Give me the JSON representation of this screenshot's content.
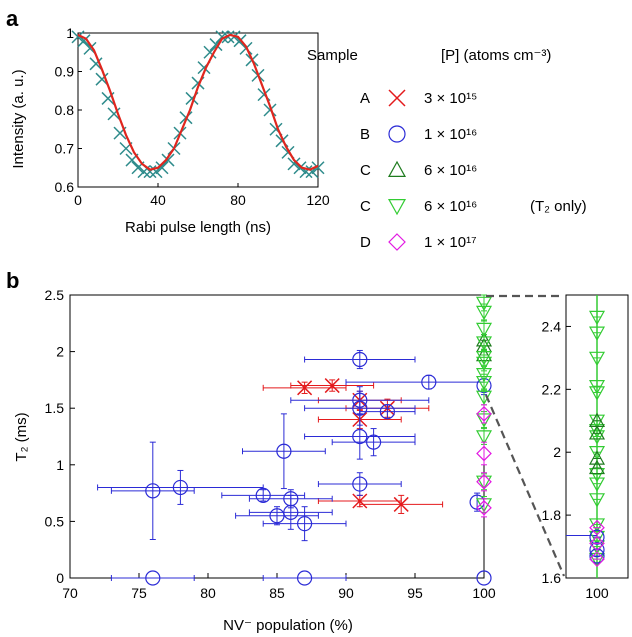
{
  "panel_labels": {
    "a": "a",
    "b": "b"
  },
  "legend": {
    "header_sample": "Sample",
    "header_conc": "[P] (atoms cm⁻³)",
    "rows": [
      {
        "sample": "A",
        "marker": "x-cross",
        "color": "#e41a1c",
        "conc": "3 × 10¹⁵",
        "note": ""
      },
      {
        "sample": "B",
        "marker": "circle",
        "color": "#2b2bd6",
        "conc": "1 × 10¹⁶",
        "note": ""
      },
      {
        "sample": "C",
        "marker": "triangle-up",
        "color": "#1e7b1e",
        "conc": "6 × 10¹⁶",
        "note": ""
      },
      {
        "sample": "C",
        "marker": "triangle-down",
        "color": "#33cc33",
        "conc": "6 × 10¹⁶",
        "note": "(T₂ only)"
      },
      {
        "sample": "D",
        "marker": "diamond",
        "color": "#e21ae2",
        "conc": "1 × 10¹⁷",
        "note": ""
      }
    ]
  },
  "chart_data": [
    {
      "type": "line",
      "panel": "a",
      "xlabel": "Rabi pulse length (ns)",
      "ylabel": "Intensity (a. u.)",
      "xlim": [
        0,
        120
      ],
      "ylim": [
        0.6,
        1.0
      ],
      "xticks": [
        0,
        40,
        80,
        120
      ],
      "yticks": [
        0.6,
        0.7,
        0.8,
        0.9,
        1
      ],
      "ytick_labels": [
        "0.6",
        "0.7",
        "0.8",
        "0.9",
        "1"
      ],
      "series": [
        {
          "kind": "data",
          "marker": "x",
          "color": "#2e8b8b",
          "x": [
            0,
            3,
            6,
            9,
            12,
            15,
            18,
            21,
            24,
            27,
            30,
            33,
            36,
            39,
            42,
            45,
            48,
            51,
            54,
            57,
            60,
            63,
            66,
            69,
            72,
            75,
            78,
            81,
            84,
            87,
            90,
            93,
            96,
            99,
            102,
            105,
            108,
            111,
            114,
            117,
            120
          ],
          "y": [
            0.99,
            0.98,
            0.96,
            0.92,
            0.88,
            0.83,
            0.79,
            0.74,
            0.7,
            0.67,
            0.65,
            0.64,
            0.64,
            0.64,
            0.65,
            0.67,
            0.7,
            0.74,
            0.78,
            0.83,
            0.87,
            0.91,
            0.95,
            0.97,
            0.99,
            0.99,
            0.99,
            0.98,
            0.96,
            0.93,
            0.89,
            0.84,
            0.8,
            0.75,
            0.72,
            0.69,
            0.66,
            0.65,
            0.64,
            0.64,
            0.65
          ]
        },
        {
          "kind": "fit",
          "color": "#e0261e",
          "x": [
            0,
            4,
            8,
            12,
            16,
            20,
            24,
            28,
            32,
            36,
            40,
            44,
            48,
            52,
            56,
            60,
            64,
            68,
            72,
            76,
            80,
            84,
            88,
            92,
            96,
            100,
            104,
            108,
            112,
            116,
            120
          ],
          "y": [
            0.995,
            0.985,
            0.955,
            0.905,
            0.85,
            0.79,
            0.735,
            0.69,
            0.66,
            0.645,
            0.65,
            0.67,
            0.7,
            0.75,
            0.8,
            0.86,
            0.91,
            0.95,
            0.985,
            0.995,
            0.99,
            0.965,
            0.92,
            0.865,
            0.81,
            0.75,
            0.705,
            0.67,
            0.65,
            0.645,
            0.655
          ]
        }
      ]
    },
    {
      "type": "scatter",
      "panel": "b",
      "xlabel": "NV⁻ population (%)",
      "ylabel": "T₂ (ms)",
      "xlim": [
        70,
        100
      ],
      "ylim": [
        0,
        2.5
      ],
      "xticks": [
        70,
        75,
        80,
        85,
        90,
        95,
        100
      ],
      "yticks": [
        0,
        0.5,
        1,
        1.5,
        2,
        2.5
      ],
      "ytick_labels": [
        "0",
        "0.5",
        "1",
        "1.5",
        "2",
        "2.5"
      ],
      "series": [
        {
          "sample": "A",
          "marker": "x-cross",
          "color": "#e41a1c",
          "points": [
            [
              87,
              1.68,
              3,
              0.05
            ],
            [
              89,
              1.7,
              3,
              0.05
            ],
            [
              91,
              1.57,
              3,
              0.08
            ],
            [
              91,
              1.4,
              3,
              0.08
            ],
            [
              93,
              1.5,
              3,
              0.08
            ],
            [
              91,
              0.68,
              3,
              0.05
            ],
            [
              94,
              0.65,
              3,
              0.08
            ]
          ]
        },
        {
          "sample": "B",
          "marker": "circle",
          "color": "#2b2bd6",
          "points": [
            [
              76,
              0.77,
              3,
              0.43
            ],
            [
              78,
              0.8,
              6,
              0.15
            ],
            [
              84,
              0.73,
              3,
              0.05
            ],
            [
              85,
              0.55,
              3,
              0.08
            ],
            [
              85.5,
              1.12,
              3,
              0.33
            ],
            [
              86,
              0.7,
              3,
              0.08
            ],
            [
              86,
              0.58,
              3,
              0.15
            ],
            [
              87,
              0.48,
              3,
              0.15
            ],
            [
              91,
              1.93,
              4,
              0.08
            ],
            [
              91,
              1.57,
              5,
              0.12
            ],
            [
              91,
              1.5,
              4,
              0.15
            ],
            [
              91,
              1.25,
              4,
              0.2
            ],
            [
              91,
              0.83,
              3,
              0.1
            ],
            [
              92,
              1.2,
              3,
              0.12
            ],
            [
              93,
              1.47,
              2,
              0.06
            ],
            [
              96,
              1.73,
              6,
              0.06
            ],
            [
              99.5,
              0.67,
              0,
              0.08
            ],
            [
              100,
              1.7,
              0,
              0.08
            ],
            [
              76,
              0.0,
              3,
              0
            ],
            [
              87,
              0.0,
              3,
              0
            ],
            [
              100,
              0.0,
              0,
              0
            ]
          ]
        },
        {
          "sample": "C",
          "marker": "triangle-up",
          "color": "#1e7b1e",
          "points": [
            [
              100,
              1.97,
              0,
              0.05
            ],
            [
              100,
              2.05,
              0,
              0.05
            ],
            [
              100,
              2.1,
              0,
              0.05
            ]
          ]
        },
        {
          "sample": "C (T₂ only)",
          "marker": "triangle-down",
          "color": "#33cc33",
          "points": [
            [
              100,
              2.43,
              0,
              0.07
            ],
            [
              100,
              2.35,
              0,
              0.07
            ],
            [
              100,
              2.2,
              0,
              0.07
            ],
            [
              100,
              2.08,
              0,
              0.07
            ],
            [
              100,
              1.95,
              0,
              0.07
            ],
            [
              100,
              1.9,
              0,
              0.07
            ],
            [
              100,
              1.8,
              0,
              0.07
            ],
            [
              100,
              1.73,
              0,
              0.07
            ],
            [
              100,
              1.6,
              0,
              0.07
            ],
            [
              100,
              1.4,
              0,
              0.07
            ],
            [
              100,
              1.25,
              0,
              0.07
            ],
            [
              100,
              0.85,
              0,
              0.07
            ],
            [
              100,
              0.65,
              0,
              0.07
            ]
          ]
        },
        {
          "sample": "D",
          "marker": "diamond",
          "color": "#e21ae2",
          "points": [
            [
              100,
              1.45,
              0,
              0.08
            ],
            [
              100,
              1.1,
              0,
              0.1
            ],
            [
              100,
              0.85,
              0,
              0.08
            ],
            [
              100,
              0.62,
              0,
              0.08
            ]
          ]
        }
      ]
    },
    {
      "type": "scatter",
      "panel": "b-inset",
      "xlim": [
        99,
        101
      ],
      "ylim": [
        1.6,
        2.5
      ],
      "xticks": [
        100
      ],
      "yticks": [
        1.6,
        1.8,
        2.0,
        2.2,
        2.4
      ],
      "ytick_labels": [
        "1.6",
        "1.8",
        "2",
        "2.2",
        "2.4"
      ],
      "series": [
        {
          "sample": "C (T₂ only)",
          "marker": "triangle-down",
          "color": "#33cc33",
          "points": [
            [
              100,
              2.43
            ],
            [
              100,
              2.38
            ],
            [
              100,
              2.3
            ],
            [
              100,
              2.21
            ],
            [
              100,
              2.19
            ],
            [
              100,
              2.1
            ],
            [
              100,
              2.07
            ],
            [
              100,
              2.05
            ],
            [
              100,
              2.0
            ],
            [
              100,
              1.93
            ],
            [
              100,
              1.9
            ],
            [
              100,
              1.85
            ],
            [
              100,
              1.77
            ],
            [
              100,
              1.73
            ],
            [
              100,
              1.7
            ],
            [
              100,
              1.66
            ]
          ]
        },
        {
          "sample": "C",
          "marker": "triangle-up",
          "color": "#1e7b1e",
          "points": [
            [
              100,
              2.1
            ],
            [
              100,
              2.06
            ],
            [
              100,
              1.98
            ],
            [
              100,
              1.95
            ]
          ]
        },
        {
          "sample": "B",
          "marker": "circle",
          "color": "#2b2bd6",
          "points": [
            [
              100,
              1.73
            ],
            [
              100,
              1.69
            ],
            [
              100,
              1.67
            ]
          ]
        },
        {
          "sample": "D",
          "marker": "diamond",
          "color": "#e21ae2",
          "points": [
            [
              100,
              1.76
            ],
            [
              100,
              1.71
            ],
            [
              100,
              1.66
            ]
          ]
        }
      ]
    }
  ]
}
